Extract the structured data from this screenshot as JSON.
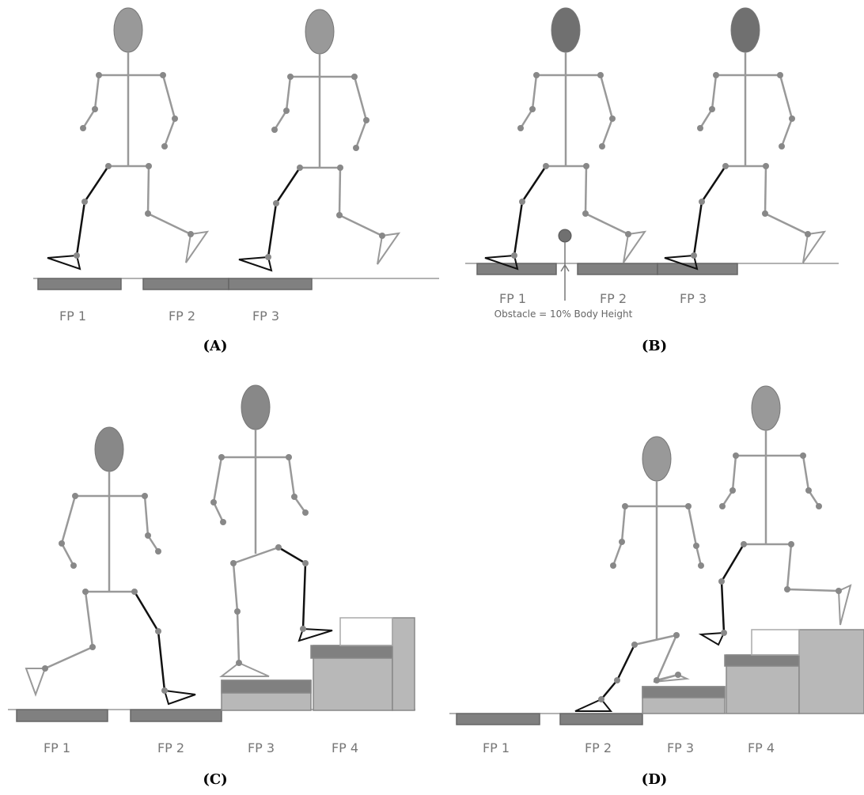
{
  "panels": [
    {
      "label": "(A)",
      "plates": [
        "FP 1",
        "FP 2",
        "FP 3"
      ]
    },
    {
      "label": "(B)",
      "plates": [
        "FP 1",
        "FP 2",
        "FP 3"
      ],
      "note": "Obstacle = 10% Body Height"
    },
    {
      "label": "(C)",
      "plates": [
        "FP 1",
        "FP 2",
        "FP 3",
        "FP 4"
      ]
    },
    {
      "label": "(D)",
      "plates": [
        "FP 1",
        "FP 2",
        "FP 3",
        "FP 4"
      ]
    }
  ]
}
